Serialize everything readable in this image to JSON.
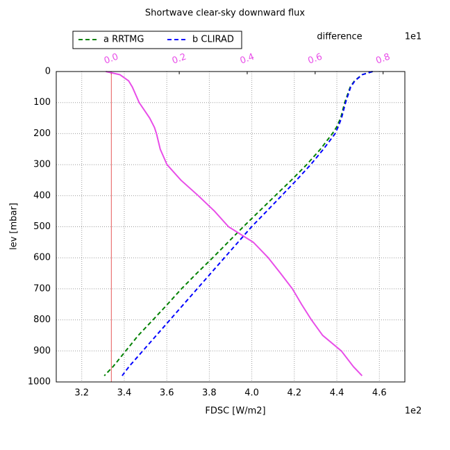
{
  "chart_data": {
    "type": "line",
    "title": "Shortwave clear-sky downward flux",
    "xlabel": "FDSC [W/m2]",
    "ylabel": "lev [mbar]",
    "x_offset_label": "1e2",
    "x2label": "difference",
    "x2_offset_label": "1e1",
    "y": [
      0,
      10,
      30,
      50,
      100,
      150,
      180,
      200,
      250,
      300,
      350,
      400,
      450,
      500,
      550,
      600,
      650,
      700,
      750,
      800,
      850,
      900,
      950,
      980
    ],
    "series": [
      {
        "name": "a RRTMG",
        "color": "#008000",
        "dashed": true,
        "values": [
          4.568,
          4.519,
          4.483,
          4.463,
          4.437,
          4.418,
          4.398,
          4.379,
          4.323,
          4.258,
          4.186,
          4.11,
          4.035,
          3.96,
          3.888,
          3.816,
          3.741,
          3.669,
          3.603,
          3.535,
          3.466,
          3.407,
          3.348,
          3.306
        ]
      },
      {
        "name": "b CLIRAD",
        "color": "#0000ff",
        "dashed": true,
        "values": [
          4.568,
          4.52,
          4.485,
          4.465,
          4.441,
          4.422,
          4.405,
          4.392,
          4.337,
          4.277,
          4.21,
          4.14,
          4.07,
          3.999,
          3.935,
          3.871,
          3.807,
          3.743,
          3.679,
          3.615,
          3.551,
          3.487,
          3.423,
          3.39
        ]
      },
      {
        "color": "#e84de8",
        "axis": "x2",
        "dashed": false,
        "values": [
          -0.016,
          0.025,
          0.051,
          0.062,
          0.082,
          0.113,
          0.127,
          0.133,
          0.144,
          0.164,
          0.205,
          0.256,
          0.304,
          0.345,
          0.418,
          0.462,
          0.498,
          0.533,
          0.56,
          0.589,
          0.622,
          0.677,
          0.712,
          0.738
        ]
      }
    ],
    "xlim": [
      3.08,
      4.72
    ],
    "xticks": [
      3.2,
      3.4,
      3.6,
      3.8,
      {
        "value": 4,
        "label": "4.0"
      },
      4.2,
      4.4,
      4.6
    ],
    "x2lim": [
      -0.162,
      0.864
    ],
    "x2ticks": [
      {
        "value": 0,
        "label": "0.0"
      },
      0.2,
      0.4,
      0.6,
      0.8
    ],
    "x2_color": "#e84de8",
    "zero_line_color": "#e03030",
    "ylim": [
      1000,
      0
    ],
    "yticks": [
      0,
      100,
      200,
      300,
      400,
      500,
      600,
      700,
      800,
      900,
      1000
    ],
    "grid": true,
    "legend": "upper left"
  }
}
